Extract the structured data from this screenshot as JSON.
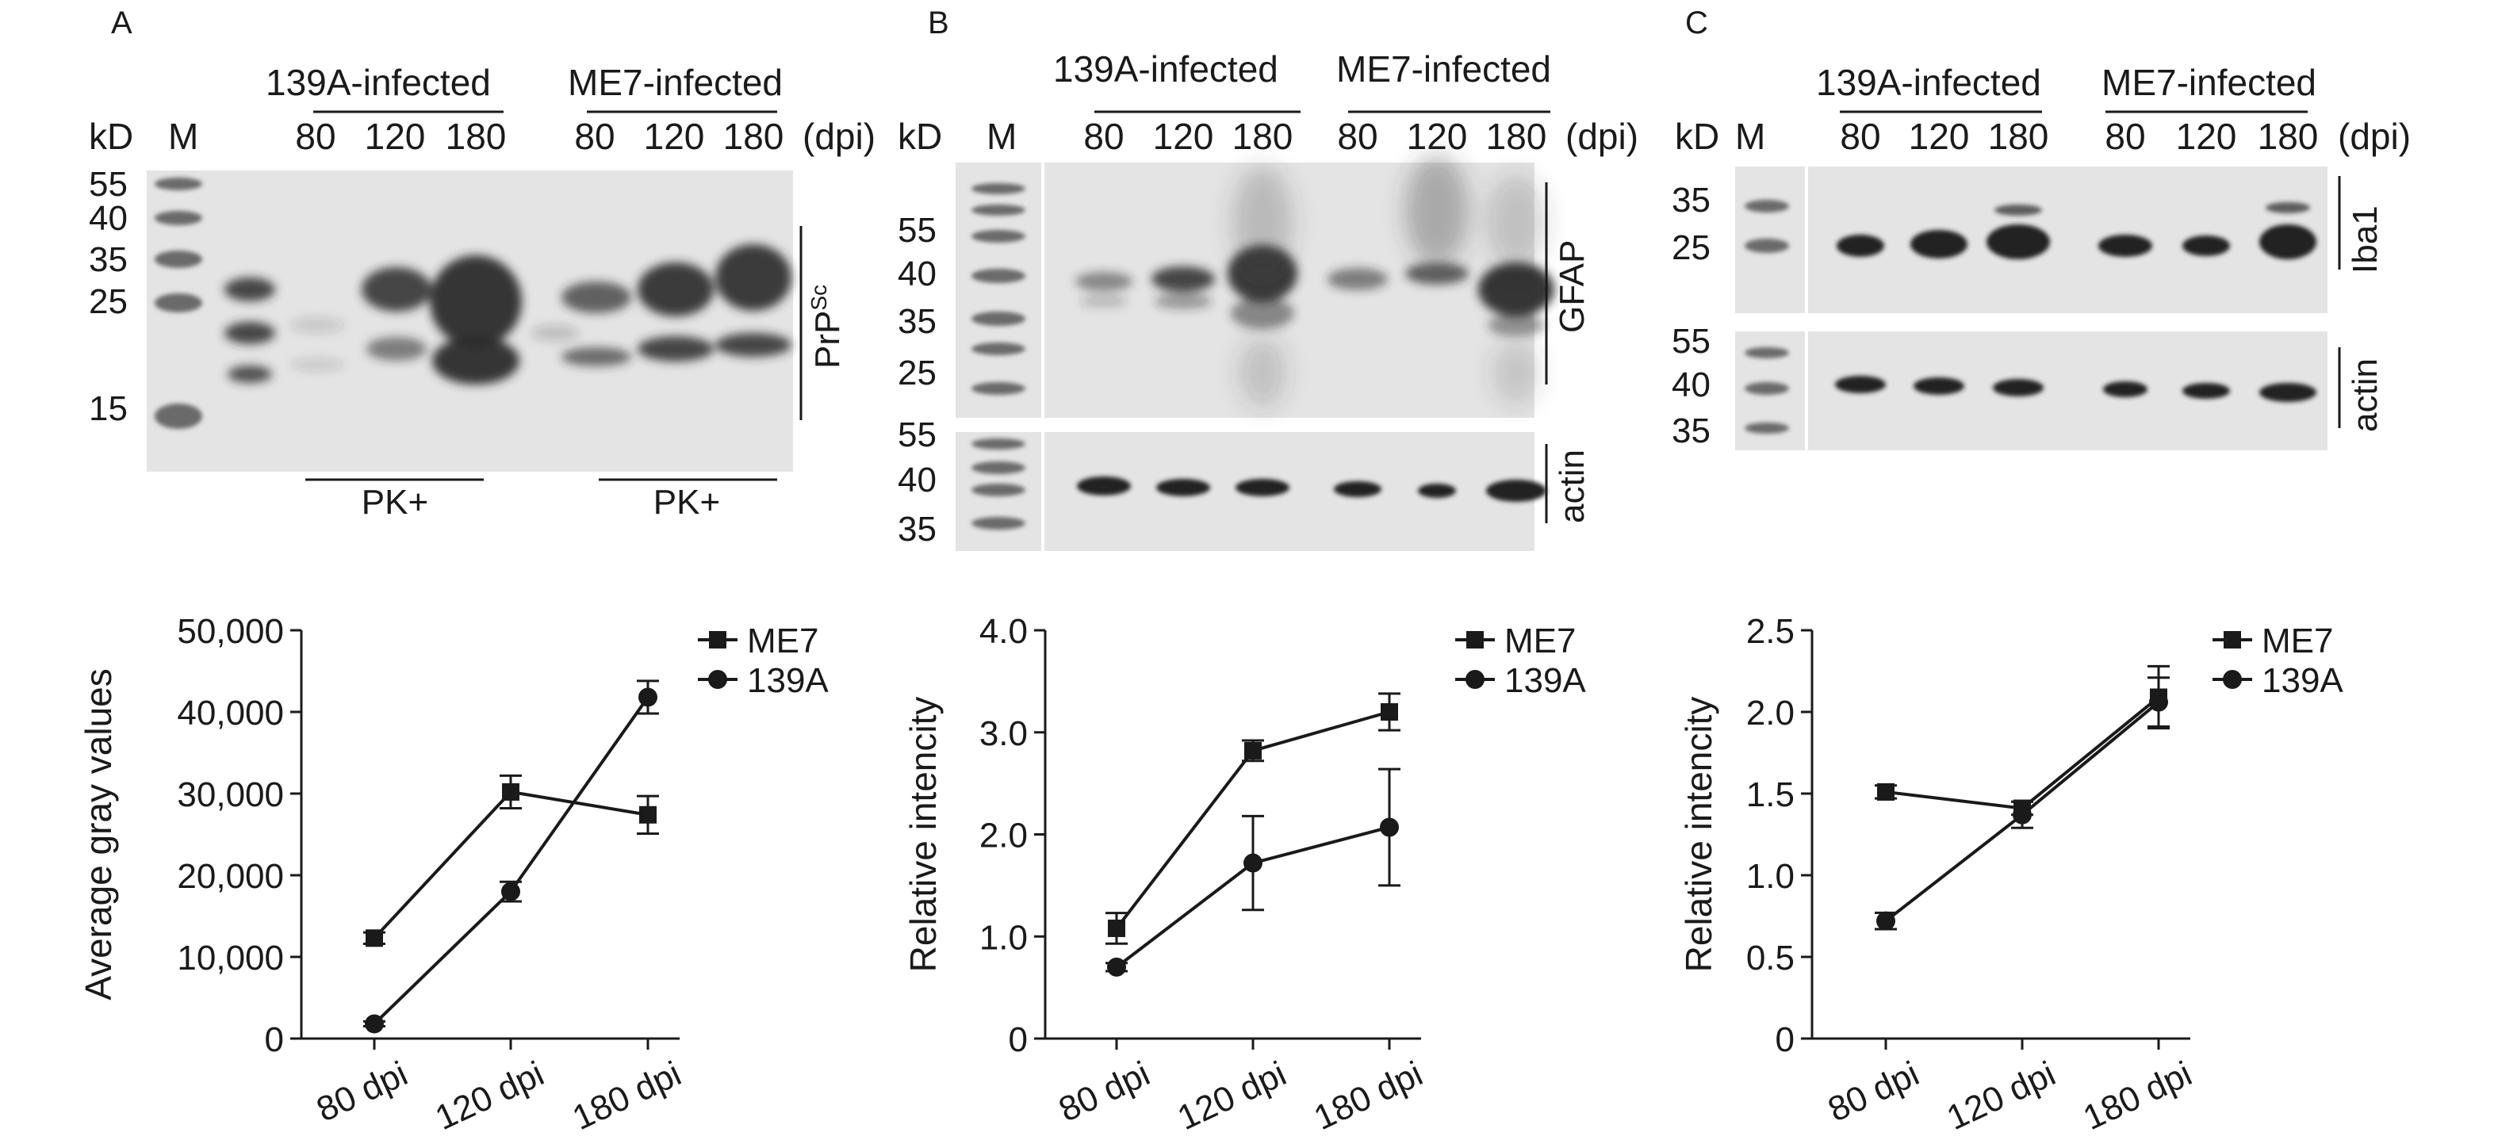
{
  "panels": [
    {
      "letter": "A",
      "blot": {
        "kd_label": "kD",
        "marker_label": "M",
        "dpi_label": "(dpi)",
        "groups": [
          {
            "name": "139A-infected",
            "lanes": [
              "80",
              "120",
              "180"
            ],
            "treatment": "PK+"
          },
          {
            "name": "ME7-infected",
            "lanes": [
              "80",
              "120",
              "180"
            ],
            "treatment": "PK+"
          }
        ],
        "mw": [
          "55",
          "40",
          "35",
          "25",
          "15"
        ],
        "protein_main": "PrP",
        "protein_sup": "Sc"
      }
    },
    {
      "letter": "B",
      "blot": {
        "kd_label": "kD",
        "marker_label": "M",
        "dpi_label": "(dpi)",
        "groups": [
          {
            "name": "139A-infected",
            "lanes": [
              "80",
              "120",
              "180"
            ]
          },
          {
            "name": "ME7-infected",
            "lanes": [
              "80",
              "120",
              "180"
            ]
          }
        ],
        "mw_top": [
          "55",
          "40",
          "35",
          "25"
        ],
        "mw_bottom": [
          "55",
          "40",
          "35"
        ],
        "protein_top": "GFAP",
        "protein_bottom": "actin"
      }
    },
    {
      "letter": "C",
      "blot": {
        "kd_label": "kD",
        "marker_label": "M",
        "dpi_label": "(dpi)",
        "groups": [
          {
            "name": "139A-infected",
            "lanes": [
              "80",
              "120",
              "180"
            ]
          },
          {
            "name": "ME7-infected",
            "lanes": [
              "80",
              "120",
              "180"
            ]
          }
        ],
        "mw_top": [
          "35",
          "25"
        ],
        "mw_bottom": [
          "55",
          "40",
          "35"
        ],
        "protein_top": "Iba1",
        "protein_bottom": "actin"
      }
    }
  ],
  "chart_data": [
    {
      "type": "line",
      "panel": "A",
      "categories": [
        "80 dpi",
        "120 dpi",
        "180 dpi"
      ],
      "ylabel": "Average gray values",
      "ylim": [
        0,
        50000
      ],
      "yticks": [
        "0",
        "10,000",
        "20,000",
        "30,000",
        "40,000",
        "50,000"
      ],
      "series": [
        {
          "name": "ME7",
          "marker": "square",
          "values": [
            12300,
            30200,
            27400
          ],
          "errors": [
            700,
            2000,
            2300
          ]
        },
        {
          "name": "139A",
          "marker": "circle",
          "values": [
            1800,
            18000,
            41800
          ],
          "errors": [
            300,
            1200,
            2000
          ]
        }
      ]
    },
    {
      "type": "line",
      "panel": "B",
      "categories": [
        "80 dpi",
        "120 dpi",
        "180 dpi"
      ],
      "ylabel": "Relative intencity",
      "ylim": [
        0,
        4
      ],
      "yticks": [
        "0",
        "1.0",
        "2.0",
        "3.0",
        "4.0"
      ],
      "series": [
        {
          "name": "ME7",
          "marker": "square",
          "values": [
            1.08,
            2.82,
            3.2
          ],
          "errors": [
            0.15,
            0.1,
            0.18
          ]
        },
        {
          "name": "139A",
          "marker": "circle",
          "values": [
            0.7,
            1.72,
            2.07
          ],
          "errors": [
            0.04,
            0.46,
            0.57
          ]
        }
      ]
    },
    {
      "type": "line",
      "panel": "C",
      "categories": [
        "80 dpi",
        "120 dpi",
        "180 dpi"
      ],
      "ylabel": "Relative intencity",
      "ylim": [
        0,
        2.5
      ],
      "yticks": [
        "0",
        "0.5",
        "1.0",
        "1.5",
        "2.0",
        "2.5"
      ],
      "series": [
        {
          "name": "ME7",
          "marker": "square",
          "values": [
            1.51,
            1.41,
            2.09
          ],
          "errors": [
            0.04,
            0.04,
            0.19
          ]
        },
        {
          "name": "139A",
          "marker": "circle",
          "values": [
            0.72,
            1.37,
            2.06
          ],
          "errors": [
            0.05,
            0.08,
            0.15
          ]
        }
      ]
    }
  ]
}
